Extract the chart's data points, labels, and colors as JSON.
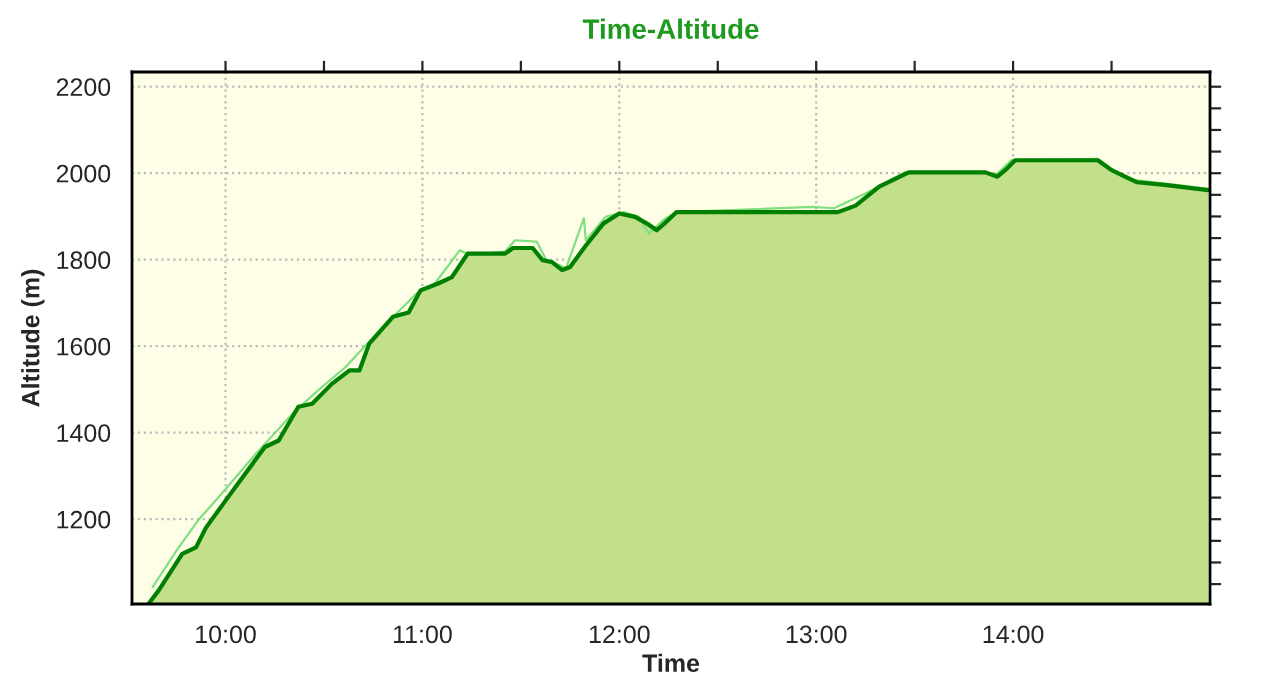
{
  "chart_data": {
    "type": "area",
    "title": "Time-Altitude",
    "xlabel": "Time",
    "ylabel": "Altitude (m)",
    "xlim": [
      9.525,
      15.0
    ],
    "ylim": [
      1004,
      2234
    ],
    "xticks": [
      {
        "value": 10,
        "label": "10:00"
      },
      {
        "value": 10.5,
        "label": null
      },
      {
        "value": 11,
        "label": "11:00"
      },
      {
        "value": 11.5,
        "label": null
      },
      {
        "value": 12,
        "label": "12:00"
      },
      {
        "value": 12.5,
        "label": null
      },
      {
        "value": 13,
        "label": "13:00"
      },
      {
        "value": 13.5,
        "label": null
      },
      {
        "value": 14,
        "label": "14:00"
      },
      {
        "value": 14.5,
        "label": null
      }
    ],
    "yticks": [
      {
        "value": 1050,
        "label": null
      },
      {
        "value": 1100,
        "label": null
      },
      {
        "value": 1150,
        "label": null
      },
      1200,
      {
        "value": 1250,
        "label": null
      },
      {
        "value": 1300,
        "label": null
      },
      {
        "value": 1350,
        "label": null
      },
      1400,
      {
        "value": 1450,
        "label": null
      },
      {
        "value": 1500,
        "label": null
      },
      {
        "value": 1550,
        "label": null
      },
      1600,
      {
        "value": 1650,
        "label": null
      },
      {
        "value": 1700,
        "label": null
      },
      {
        "value": 1750,
        "label": null
      },
      1800,
      {
        "value": 1850,
        "label": null
      },
      {
        "value": 1900,
        "label": null
      },
      {
        "value": 1950,
        "label": null
      },
      2000,
      {
        "value": 2050,
        "label": null
      },
      {
        "value": 2100,
        "label": null
      },
      {
        "value": 2150,
        "label": null
      },
      2200
    ],
    "grid": true,
    "series": [
      {
        "type": "line",
        "color": "#80e080",
        "x": [
          9.63,
          9.75,
          9.86,
          9.98,
          10.14,
          10.34,
          10.47,
          10.61,
          10.69,
          10.81,
          10.97,
          11.05,
          11.19,
          11.24,
          11.42,
          11.47,
          11.58,
          11.63,
          11.73,
          11.82,
          11.83,
          11.93,
          12.02,
          12.1,
          12.15,
          12.23,
          12.29,
          12.98,
          13.09,
          13.25,
          13.45,
          13.92,
          13.99,
          14.43,
          14.57,
          14.77,
          14.99
        ],
        "values": [
          1043,
          1127,
          1197,
          1259,
          1344,
          1444,
          1498,
          1552,
          1591,
          1649,
          1722,
          1737,
          1822,
          1811,
          1819,
          1845,
          1842,
          1799,
          1781,
          1896,
          1845,
          1899,
          1910,
          1899,
          1861,
          1894,
          1910,
          1922,
          1919,
          1953,
          2002,
          1999,
          2030,
          2033,
          1987,
          1976,
          1964
        ]
      },
      {
        "color": "#007f00",
        "x": [
          9.61,
          9.66,
          9.78,
          9.85,
          9.9,
          10.0,
          10.1,
          10.2,
          10.27,
          10.37,
          10.44,
          10.54,
          10.63,
          10.68,
          10.73,
          10.85,
          10.93,
          10.99,
          11.08,
          11.15,
          11.23,
          11.42,
          11.46,
          11.56,
          11.61,
          11.66,
          11.71,
          11.75,
          11.83,
          11.92,
          12.0,
          12.08,
          12.15,
          12.19,
          12.23,
          12.29,
          13.11,
          13.2,
          13.32,
          13.47,
          13.65,
          13.86,
          13.92,
          13.96,
          14.01,
          14.43,
          14.5,
          14.63,
          14.77,
          14.99
        ],
        "values": [
          1005,
          1035,
          1120,
          1135,
          1180,
          1243,
          1305,
          1367,
          1382,
          1460,
          1467,
          1513,
          1544,
          1544,
          1606,
          1668,
          1678,
          1729,
          1745,
          1760,
          1814,
          1814,
          1827,
          1827,
          1799,
          1794,
          1776,
          1783,
          1833,
          1884,
          1907,
          1899,
          1881,
          1868,
          1884,
          1910,
          1910,
          1925,
          1969,
          2002,
          2002,
          2002,
          1992,
          2007,
          2030,
          2030,
          2007,
          1979,
          1973,
          1961
        ]
      }
    ]
  }
}
